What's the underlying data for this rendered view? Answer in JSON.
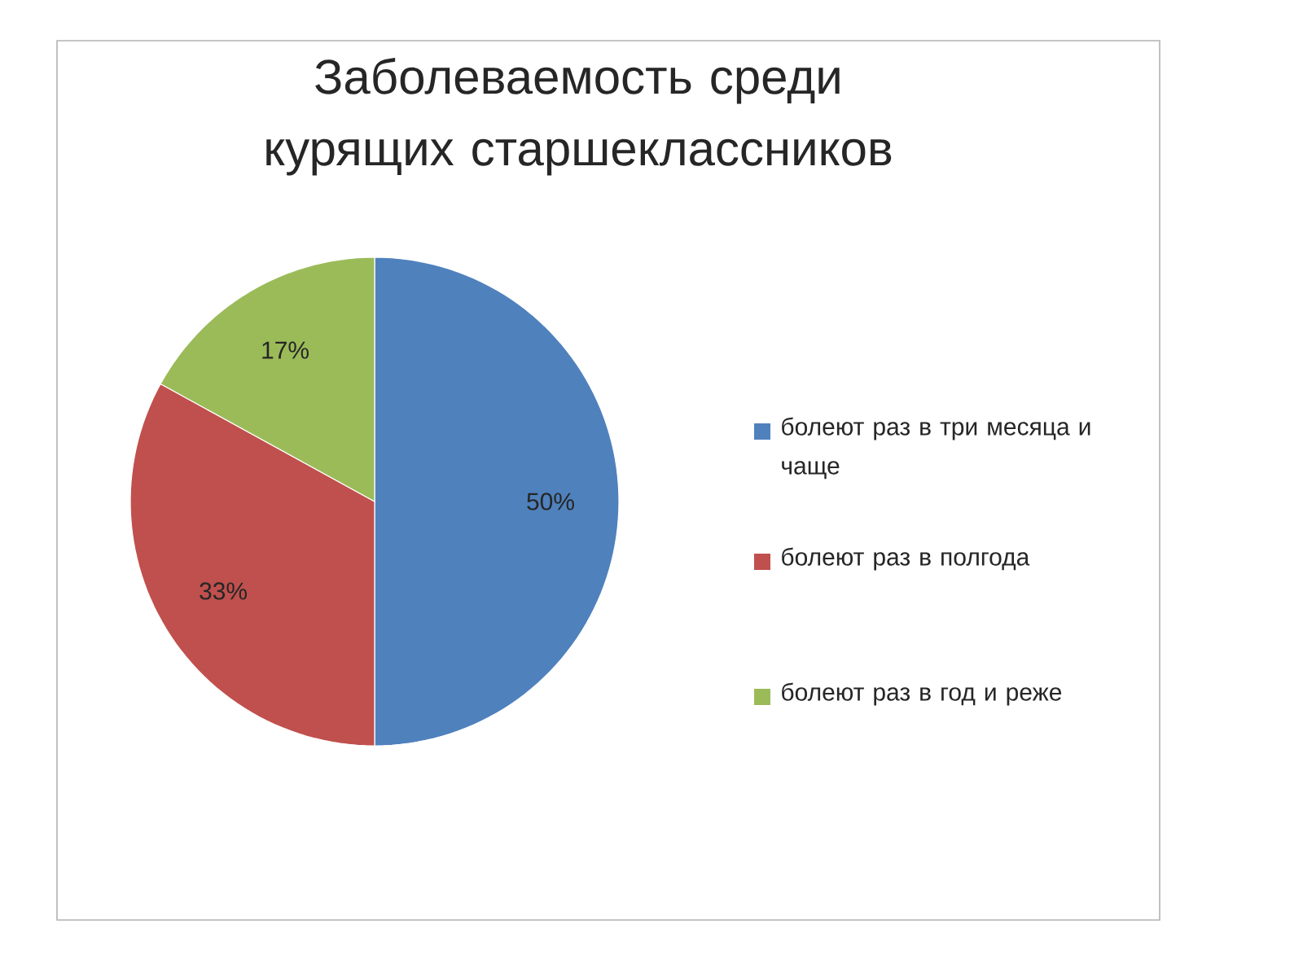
{
  "chart_data": {
    "type": "pie",
    "title": "Заболеваемость среди курящих старшеклассников",
    "categories": [
      "болеют раз в три месяца и чаще",
      "болеют раз в полгода",
      "болеют раз в год и реже"
    ],
    "values": [
      50,
      33,
      17
    ],
    "value_labels": [
      "50%",
      "33%",
      "17%"
    ],
    "colors": [
      "#4f81bd",
      "#c0504d",
      "#9bbb59"
    ],
    "legend": "right"
  }
}
